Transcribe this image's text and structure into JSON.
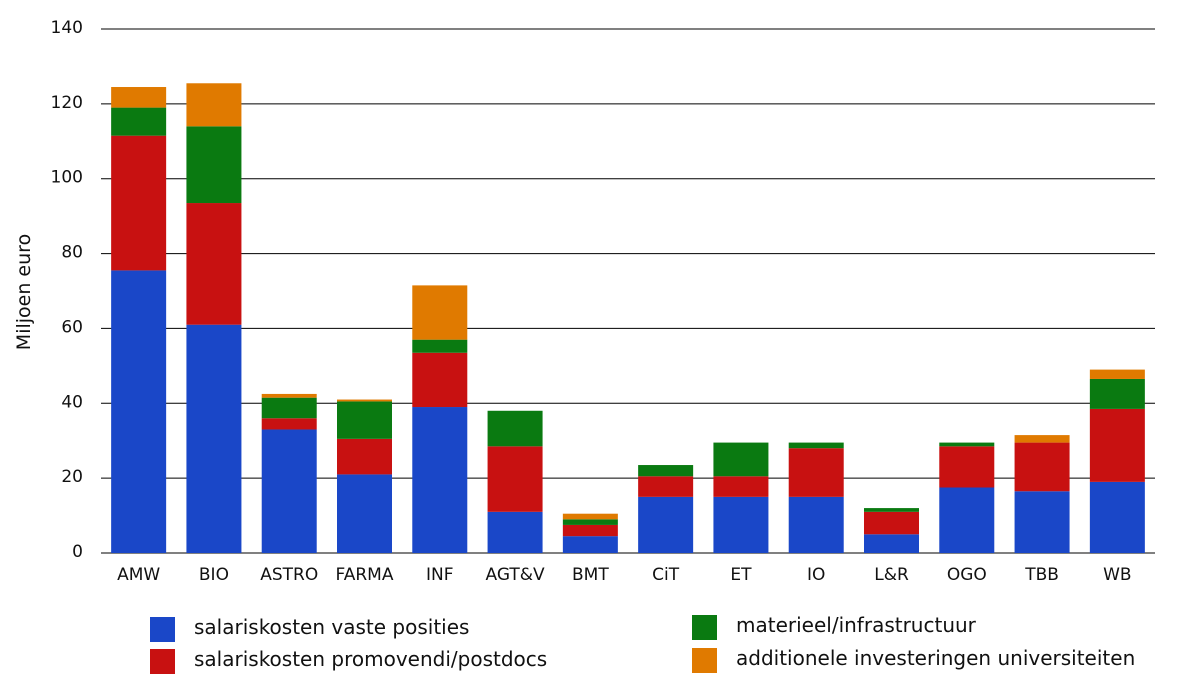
{
  "chart_data": {
    "type": "bar",
    "stacked": true,
    "title": "",
    "xlabel": "",
    "ylabel": "Miljoen euro",
    "ylim": [
      0,
      140
    ],
    "yticks": [
      0,
      20,
      40,
      60,
      80,
      100,
      120,
      140
    ],
    "grid": true,
    "legend_position": "bottom",
    "categories": [
      "AMW",
      "BIO",
      "ASTRO",
      "FARMA",
      "INF",
      "AGT&V",
      "BMT",
      "CiT",
      "ET",
      "IO",
      "L&R",
      "OGO",
      "TBB",
      "WB"
    ],
    "series": [
      {
        "name": "salariskosten vaste posities",
        "color": "#1a47c8",
        "values": [
          75.5,
          61,
          33,
          21,
          39,
          11,
          4.5,
          15,
          15,
          15,
          5,
          17.5,
          16.5,
          19
        ]
      },
      {
        "name": "salariskosten promovendi/postdocs",
        "color": "#c81111",
        "values": [
          36,
          32.5,
          3,
          9.5,
          14.5,
          17.5,
          3,
          5.5,
          5.5,
          13,
          6,
          11,
          13,
          19.5
        ]
      },
      {
        "name": "materieel/infrastructuur",
        "color": "#0a7a11",
        "values": [
          7.5,
          20.5,
          5.5,
          10,
          3.5,
          9.5,
          1.5,
          3,
          9,
          1.5,
          1,
          1,
          0,
          8
        ]
      },
      {
        "name": "additionele investeringen universiteiten",
        "color": "#e07a00",
        "values": [
          5.5,
          11.5,
          1,
          0.5,
          14.5,
          0,
          1.5,
          0,
          0,
          0,
          0,
          0,
          2,
          2.5
        ]
      }
    ]
  }
}
